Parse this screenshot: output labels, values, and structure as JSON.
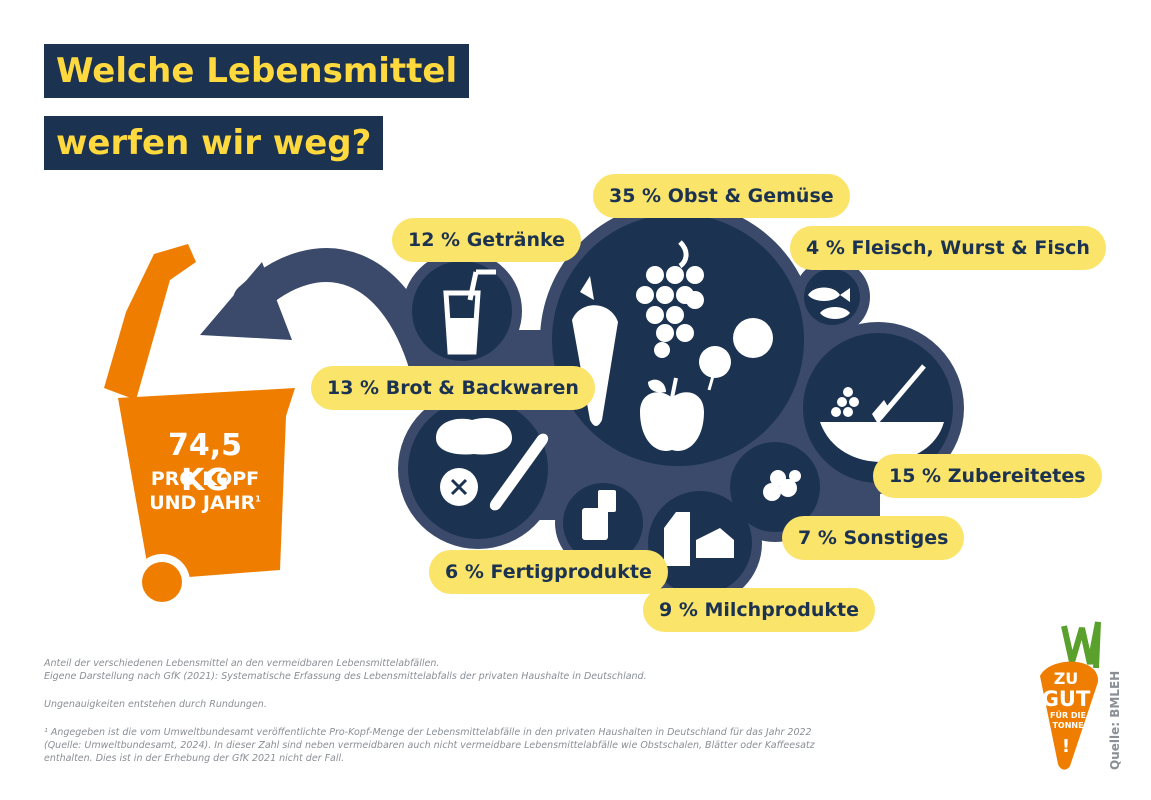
{
  "title": {
    "line1": "Welche Lebensmittel",
    "line2": "werfen wir weg?"
  },
  "bin": {
    "amount": "74,5 KG",
    "line2": "PRO KOPF",
    "line3": "UND JAHR",
    "footnote_mark": "1"
  },
  "chart_data": {
    "type": "bubble",
    "unit": "%",
    "categories": [
      {
        "name": "Obst & Gemüse",
        "value": 35,
        "label": "35 % Obst & Gemüse",
        "icon": "fruit-vegetable-icon"
      },
      {
        "name": "Zubereitetes",
        "value": 15,
        "label": "15 % Zubereitetes",
        "icon": "bowl-fork-icon"
      },
      {
        "name": "Brot & Backwaren",
        "value": 13,
        "label": "13 % Brot & Backwaren",
        "icon": "bread-icon"
      },
      {
        "name": "Getränke",
        "value": 12,
        "label": "12 % Getränke",
        "icon": "drink-glass-icon"
      },
      {
        "name": "Milchprodukte",
        "value": 9,
        "label": "9 % Milchprodukte",
        "icon": "milk-cheese-icon"
      },
      {
        "name": "Sonstiges",
        "value": 7,
        "label": "7 % Sonstiges",
        "icon": "misc-food-icon"
      },
      {
        "name": "Fertigprodukte",
        "value": 6,
        "label": "6 % Fertigprodukte",
        "icon": "can-icon"
      },
      {
        "name": "Fleisch, Wurst & Fisch",
        "value": 4,
        "label": "4 % Fleisch, Wurst & Fisch",
        "icon": "fish-icon"
      }
    ]
  },
  "footnotes": {
    "line1": "Anteil der verschiedenen Lebensmittel an den vermeidbaren Lebensmittelabfällen.",
    "line2": "Eigene Darstellung nach GfK (2021): Systematische Erfassung des Lebensmittelabfalls der privaten Haushalte in Deutschland.",
    "line3": "Ungenauigkeiten entstehen durch Rundungen.",
    "line4": "¹ Angegeben ist die vom Umweltbundesamt veröffentlichte Pro-Kopf-Menge der Lebensmittelabfälle in den privaten Haushalten in Deutschland für das Jahr 2022",
    "line5": "(Quelle: Umweltbundesamt, 2024). In dieser Zahl sind neben vermeidbaren auch nicht vermeidbare Lebensmittelabfälle wie Obstschalen, Blätter oder Kaffeesatz",
    "line6": "enthalten. Dies ist in der Erhebung der GfK 2021 nicht der Fall."
  },
  "source": "Quelle: BMLEH",
  "logo": {
    "line1": "ZU",
    "line2": "GUT",
    "line3": "FÜR DIE",
    "line4": "TONNE",
    "mark": "!"
  },
  "colors": {
    "navy": "#1b3250",
    "yellow": "#fbe46a",
    "orange": "#ef7d00",
    "arrow": "#3b4a6b"
  }
}
